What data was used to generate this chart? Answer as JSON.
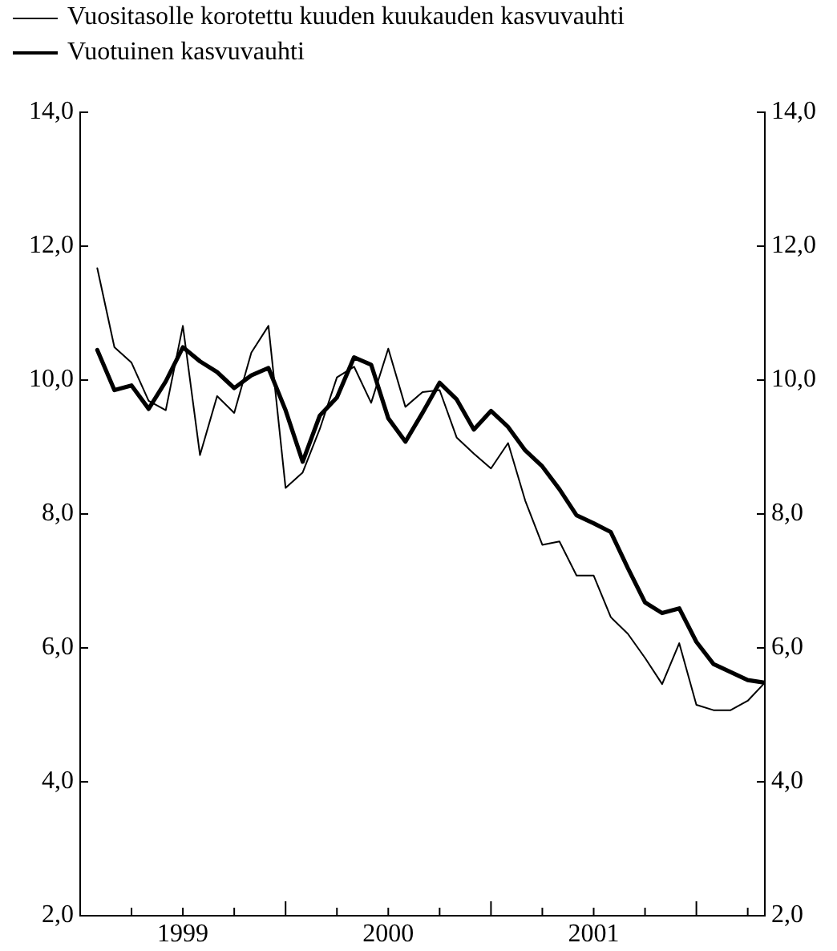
{
  "chart_data": {
    "type": "line",
    "x": [
      "1999-02",
      "1999-03",
      "1999-04",
      "1999-05",
      "1999-06",
      "1999-07",
      "1999-08",
      "1999-09",
      "1999-10",
      "1999-11",
      "1999-12",
      "2000-01",
      "2000-02",
      "2000-03",
      "2000-04",
      "2000-05",
      "2000-06",
      "2000-07",
      "2000-08",
      "2000-09",
      "2000-10",
      "2000-11",
      "2000-12",
      "2001-01",
      "2001-02",
      "2001-03",
      "2001-04",
      "2001-05",
      "2001-06",
      "2001-07",
      "2001-08",
      "2001-09",
      "2001-10",
      "2001-11",
      "2001-12",
      "2002-01",
      "2002-02",
      "2002-03",
      "2002-04",
      "2002-05"
    ],
    "series": [
      {
        "name": "Vuositasolle korotettu kuuden kuukauden kasvuvauhti",
        "color": "#000000",
        "values": [
          11.67,
          10.49,
          10.26,
          9.69,
          9.55,
          10.81,
          8.88,
          9.76,
          9.51,
          10.41,
          10.81,
          8.39,
          8.62,
          9.27,
          10.04,
          10.2,
          9.66,
          10.47,
          9.6,
          9.82,
          9.85,
          9.14,
          8.9,
          8.68,
          9.06,
          8.2,
          7.54,
          7.59,
          7.08,
          7.08,
          6.46,
          6.21,
          5.85,
          5.46,
          6.07,
          5.15,
          5.07,
          5.07,
          5.21,
          5.48
        ]
      },
      {
        "name": "Vuotuinen kasvuvauhti",
        "color": "#000000",
        "values": [
          10.45,
          9.85,
          9.92,
          9.57,
          9.98,
          10.49,
          10.28,
          10.12,
          9.88,
          10.07,
          10.18,
          9.55,
          8.78,
          9.47,
          9.74,
          10.34,
          10.23,
          9.43,
          9.08,
          9.51,
          9.96,
          9.71,
          9.26,
          9.54,
          9.3,
          8.95,
          8.71,
          8.37,
          7.98,
          7.86,
          7.73,
          7.19,
          6.68,
          6.52,
          6.59,
          6.09,
          5.76,
          5.64,
          5.52,
          5.48
        ]
      }
    ],
    "xlim": [
      "1999-01",
      "2002-05"
    ],
    "xticks": [
      {
        "value": "1999-04",
        "label": null
      },
      {
        "value": "1999-07",
        "label": "1999"
      },
      {
        "value": "1999-10",
        "label": null
      },
      {
        "value": "2000-01",
        "label": null
      },
      {
        "value": "2000-04",
        "label": null
      },
      {
        "value": "2000-07",
        "label": "2000"
      },
      {
        "value": "2000-10",
        "label": null
      },
      {
        "value": "2001-01",
        "label": null
      },
      {
        "value": "2001-04",
        "label": null
      },
      {
        "value": "2001-07",
        "label": "2001"
      },
      {
        "value": "2001-10",
        "label": null
      },
      {
        "value": "2002-01",
        "label": null
      },
      {
        "value": "2002-04",
        "label": null
      }
    ],
    "ylim": [
      2,
      14
    ],
    "yticks": [
      {
        "value": 2,
        "label": "2,0"
      },
      {
        "value": 4,
        "label": "4,0"
      },
      {
        "value": 6,
        "label": "6,0"
      },
      {
        "value": 8,
        "label": "8,0"
      },
      {
        "value": 10,
        "label": "10,0"
      },
      {
        "value": 12,
        "label": "12,0"
      },
      {
        "value": 14,
        "label": "14,0"
      }
    ],
    "y2lim": [
      2,
      14
    ],
    "y2ticks": [
      {
        "value": 2,
        "label": "2,0"
      },
      {
        "value": 4,
        "label": "4,0"
      },
      {
        "value": 6,
        "label": "6,0"
      },
      {
        "value": 8,
        "label": "8,0"
      },
      {
        "value": 10,
        "label": "10,0"
      },
      {
        "value": 12,
        "label": "12,0"
      },
      {
        "value": 14,
        "label": "14,0"
      }
    ],
    "grid": false,
    "legend": "top left",
    "marker": "none",
    "line_style": "solid"
  }
}
